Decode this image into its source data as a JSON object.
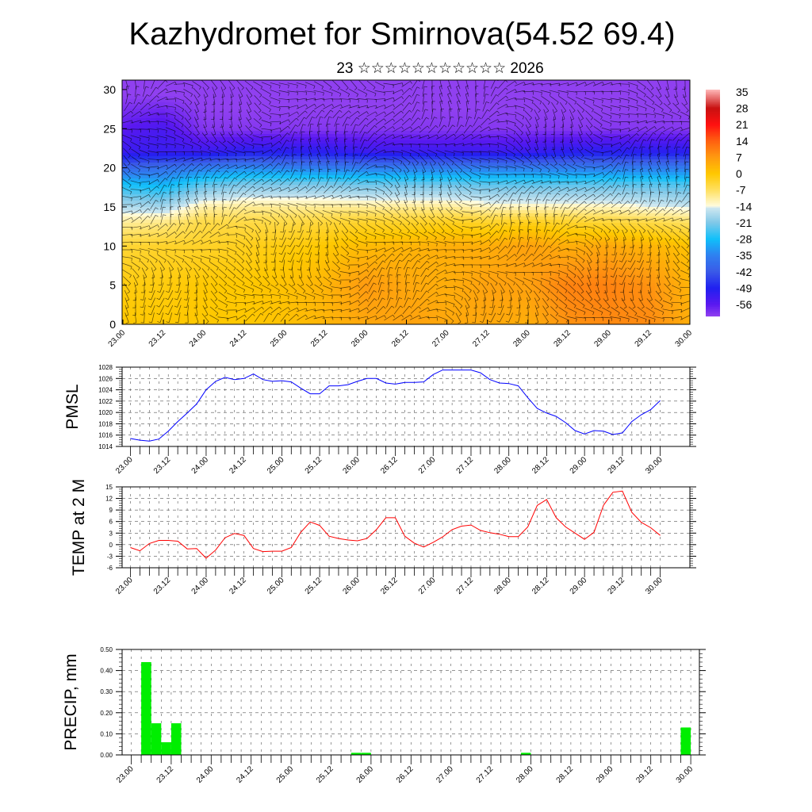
{
  "title": "Kazhydromet for Smirnova(54.52 69.4)",
  "subtitle": "23 ☆☆☆☆☆☆☆☆☆☆☆ 2026",
  "time_labels": [
    "23.00",
    "23.12",
    "24.00",
    "24.12",
    "25.00",
    "25.12",
    "26.00",
    "26.12",
    "27.00",
    "27.12",
    "28.00",
    "28.12",
    "29.00",
    "29.12",
    "30.00"
  ],
  "chart_data": [
    {
      "type": "heatmap",
      "name": "cross-section",
      "ylim": [
        0,
        31
      ],
      "yticks": [
        "0",
        "5",
        "10",
        "15",
        "20",
        "25",
        "30"
      ],
      "colorbar_labels": [
        "35",
        "28",
        "21",
        "14",
        "7",
        "0",
        "-7",
        "-14",
        "-21",
        "-28",
        "-35",
        "-42",
        "-49",
        "-56"
      ],
      "colorbar_values": [
        35,
        28,
        21,
        14,
        7,
        0,
        -7,
        -14,
        -21,
        -28,
        -35,
        -42,
        -49,
        -56
      ],
      "levels": [
        0,
        5,
        10,
        13,
        15,
        18,
        20,
        22,
        25,
        30
      ],
      "values": [
        [
          0,
          0,
          0,
          0,
          1,
          3,
          5,
          6,
          5,
          5,
          4,
          8,
          9,
          9,
          4
        ],
        [
          -1,
          -1,
          0,
          0,
          1,
          3,
          7,
          5,
          4,
          6,
          6,
          10,
          10,
          8,
          3
        ],
        [
          -4,
          -3,
          -3,
          -2,
          -1,
          0,
          2,
          3,
          4,
          4,
          6,
          4,
          5,
          3,
          1
        ],
        [
          -10,
          -9,
          -5,
          -5,
          -5,
          -4,
          -3,
          -3,
          -2,
          -3,
          -2,
          -3,
          -4,
          -5,
          -7
        ],
        [
          -17,
          -18,
          -11,
          -10,
          -10,
          -10,
          -10,
          -10,
          -10,
          -12,
          -12,
          -12,
          -12,
          -14,
          -15
        ],
        [
          -28,
          -30,
          -24,
          -22,
          -22,
          -22,
          -23,
          -23,
          -23,
          -24,
          -24,
          -24,
          -24,
          -24,
          -25
        ],
        [
          -40,
          -38,
          -36,
          -34,
          -35,
          -36,
          -36,
          -36,
          -36,
          -36,
          -36,
          -36,
          -36,
          -36,
          -36
        ],
        [
          -52,
          -52,
          -52,
          -50,
          -50,
          -50,
          -52,
          -52,
          -52,
          -52,
          -52,
          -50,
          -50,
          -50,
          -50
        ],
        [
          -56,
          -54,
          -60,
          -60,
          -60,
          -60,
          -60,
          -60,
          -60,
          -60,
          -60,
          -60,
          -60,
          -60,
          -60
        ],
        [
          -62,
          -62,
          -62,
          -62,
          -62,
          -62,
          -62,
          -62,
          -62,
          -62,
          -62,
          -62,
          -62,
          -62,
          -62
        ]
      ]
    },
    {
      "type": "line",
      "name": "pmsl",
      "ylabel": "PMSL",
      "ylim": [
        1014,
        1028
      ],
      "yticks": [
        "1014",
        "1016",
        "1018",
        "1020",
        "1022",
        "1024",
        "1026",
        "1028"
      ],
      "step_hours": 3,
      "color": "#0000ff",
      "values": [
        1015.4,
        1015.1,
        1014.95,
        1015.3,
        1016.7,
        1018.4,
        1019.9,
        1021.5,
        1024,
        1025.5,
        1026.2,
        1025.8,
        1026,
        1026.8,
        1025.8,
        1025.5,
        1025.6,
        1025.4,
        1024.3,
        1023.3,
        1023.3,
        1024.7,
        1024.7,
        1024.9,
        1025.5,
        1026,
        1026,
        1025.2,
        1025,
        1025.3,
        1025.3,
        1025.4,
        1026.7,
        1027.5,
        1027.5,
        1027.5,
        1027.5,
        1027,
        1025.8,
        1025.2,
        1025.1,
        1024.7,
        1022.6,
        1020.7,
        1019.9,
        1019.3,
        1018.2,
        1016.8,
        1016.2,
        1016.8,
        1016.7,
        1016.1,
        1016.4,
        1018.4,
        1019.6,
        1020.5,
        1022.1
      ]
    },
    {
      "type": "line",
      "name": "temp-2m",
      "ylabel": "TEMP at 2 M",
      "ylim": [
        -6,
        15
      ],
      "yticks": [
        "-6",
        "-3",
        "0",
        "3",
        "6",
        "9",
        "12",
        "15"
      ],
      "step_hours": 3,
      "color": "#ff0000",
      "values": [
        -0.75,
        -1.6,
        0.3,
        1.1,
        1.1,
        0.9,
        -1.1,
        -1.0,
        -3.5,
        -1.4,
        1.8,
        2.9,
        2.4,
        -1.0,
        -1.8,
        -1.7,
        -1.7,
        -0.75,
        3.2,
        5.9,
        5.0,
        2.2,
        1.6,
        1.2,
        1.0,
        1.6,
        3.9,
        7.0,
        7.0,
        2.2,
        0.4,
        -0.6,
        0.6,
        2.0,
        3.9,
        4.8,
        5.1,
        3.7,
        3.1,
        2.7,
        2.1,
        2.1,
        4.6,
        10.2,
        11.7,
        7.0,
        4.6,
        3.0,
        1.4,
        3.2,
        10.2,
        13.6,
        13.9,
        8.4,
        5.8,
        4.4,
        2.4
      ]
    },
    {
      "type": "bar",
      "name": "precip",
      "ylabel": "PRECIP, mm",
      "ylim": [
        0,
        0.5
      ],
      "yticks": [
        "0.00",
        "0.10",
        "0.20",
        "0.30",
        "0.40",
        "0.50"
      ],
      "step_hours": 3,
      "color": "#00ee00",
      "values": [
        0,
        0.44,
        0.15,
        0.06,
        0.15,
        0,
        0,
        0,
        0,
        0,
        0,
        0,
        0,
        0,
        0,
        0,
        0,
        0,
        0,
        0,
        0,
        0,
        0.01,
        0.01,
        0,
        0,
        0,
        0,
        0,
        0,
        0,
        0,
        0,
        0,
        0,
        0,
        0,
        0,
        0,
        0.01,
        0,
        0,
        0,
        0,
        0,
        0,
        0,
        0,
        0,
        0,
        0,
        0,
        0,
        0,
        0,
        0.13
      ]
    }
  ]
}
